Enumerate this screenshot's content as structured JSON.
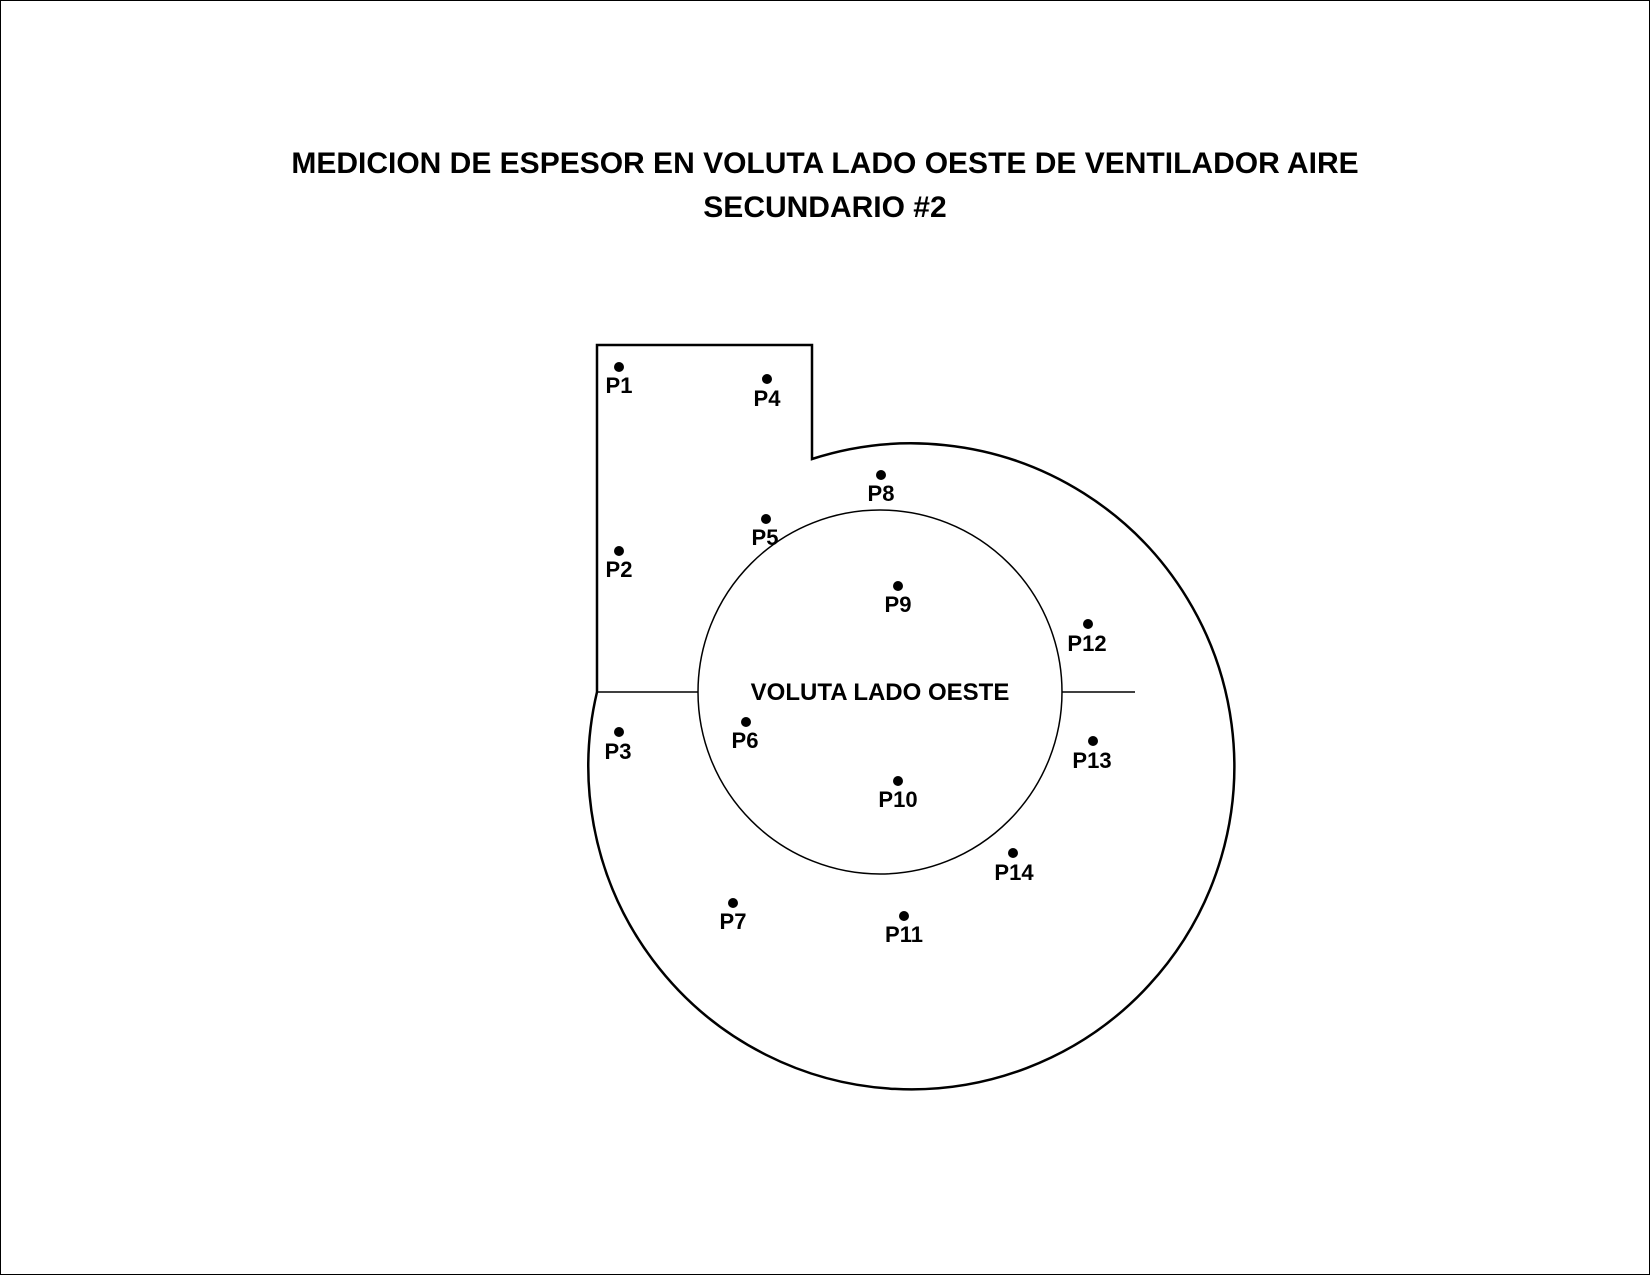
{
  "title": {
    "line1": "MEDICION DE ESPESOR EN VOLUTA LADO OESTE DE VENTILADOR AIRE",
    "line2": "SECUNDARIO #2"
  },
  "diagram": {
    "center_label": "VOLUTA LADO OESTE",
    "points": [
      {
        "id": "p1",
        "label": "P1"
      },
      {
        "id": "p2",
        "label": "P2"
      },
      {
        "id": "p3",
        "label": "P3"
      },
      {
        "id": "p4",
        "label": "P4"
      },
      {
        "id": "p5",
        "label": "P5"
      },
      {
        "id": "p6",
        "label": "P6"
      },
      {
        "id": "p7",
        "label": "P7"
      },
      {
        "id": "p8",
        "label": "P8"
      },
      {
        "id": "p9",
        "label": "P9"
      },
      {
        "id": "p10",
        "label": "P10"
      },
      {
        "id": "p11",
        "label": "P11"
      },
      {
        "id": "p12",
        "label": "P12"
      },
      {
        "id": "p13",
        "label": "P13"
      },
      {
        "id": "p14",
        "label": "P14"
      }
    ],
    "colors": {
      "stroke": "#000000",
      "background": "#ffffff"
    }
  }
}
